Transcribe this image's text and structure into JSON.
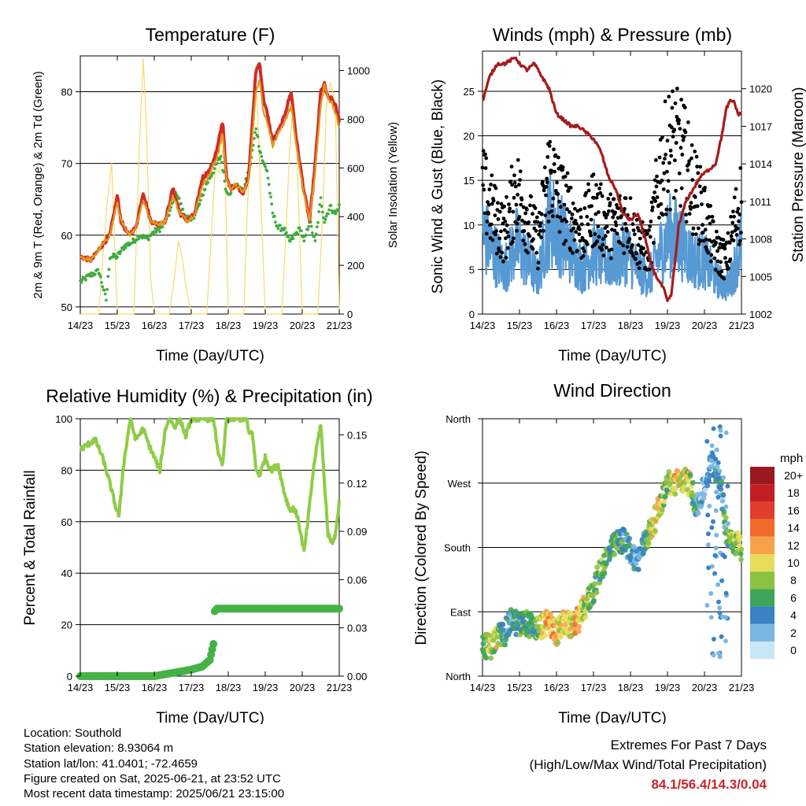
{
  "time_ticks": [
    "14/23",
    "15/23",
    "16/23",
    "17/23",
    "18/23",
    "19/23",
    "20/23",
    "21/23"
  ],
  "info": {
    "location": "Location: Southold",
    "elevation": "Station elevation: 8.93064 m",
    "latlon": "Station lat/lon: 41.0401; -72.4659",
    "created": "Figure created on Sat, 2025-06-21, at 23:52 UTC",
    "recent": "Most recent data timestamp: 2025/06/21 23:15:00"
  },
  "extremes": {
    "title": "Extremes For Past 7 Days",
    "subtitle": "(High/Low/Max Wind/Total Precipitation)",
    "values": "84.1/56.4/14.3/0.04"
  },
  "colors": {
    "temp_2m": "#e09a1e",
    "temp_9m": "#d42a24",
    "dewpoint": "#3fac3f",
    "solar": "#f5dc6c",
    "wind": "#5799d3",
    "gust": "#000000",
    "pressure": "#a51b1c",
    "rh": "#8fcc47",
    "precip": "#45b244"
  },
  "chart_data": [
    {
      "type": "line",
      "title": "Temperature (F)",
      "xlabel": "Time (Day/UTC)",
      "ylabel": "2m & 9m T (Red, Orange) & 2m Td (Green)",
      "y2label": "Solar Insolation (Yellow)",
      "x_range_days": [
        0,
        7
      ],
      "ylim": [
        49,
        85
      ],
      "yticks": [
        50,
        60,
        70,
        80
      ],
      "y2lim": [
        0,
        1060
      ],
      "y2ticks": [
        0,
        200,
        400,
        600,
        800,
        1000
      ],
      "grid": true,
      "series": [
        {
          "name": "9m T",
          "x": [
            0,
            0.3,
            0.5,
            0.8,
            1.0,
            1.1,
            1.3,
            1.5,
            1.7,
            1.9,
            2.1,
            2.3,
            2.5,
            2.7,
            2.9,
            3.1,
            3.3,
            3.5,
            3.7,
            3.85,
            3.95,
            4.05,
            4.2,
            4.4,
            4.55,
            4.75,
            4.85,
            4.95,
            5.05,
            5.2,
            5.45,
            5.7,
            5.85,
            6.05,
            6.2,
            6.35,
            6.5,
            6.6,
            6.7,
            6.8,
            6.9,
            7.0
          ],
          "values": [
            57,
            56.5,
            58,
            60,
            65.5,
            62,
            60,
            61,
            66,
            62,
            61.5,
            62,
            66.5,
            63,
            62,
            63,
            68,
            69,
            72,
            76,
            68,
            66.5,
            67,
            66,
            68,
            83,
            84,
            79,
            77,
            73,
            75.5,
            80,
            73,
            66,
            62,
            70,
            80,
            81,
            79,
            79,
            78,
            76
          ]
        },
        {
          "name": "2m T",
          "x": [
            0,
            0.3,
            0.5,
            0.8,
            1.0,
            1.1,
            1.3,
            1.5,
            1.7,
            1.9,
            2.1,
            2.3,
            2.5,
            2.7,
            2.9,
            3.1,
            3.3,
            3.5,
            3.7,
            3.85,
            3.95,
            4.05,
            4.2,
            4.4,
            4.55,
            4.75,
            4.85,
            4.95,
            5.05,
            5.2,
            5.45,
            5.7,
            5.85,
            6.05,
            6.2,
            6.35,
            6.5,
            6.6,
            6.7,
            6.8,
            6.9,
            7.0
          ],
          "values": [
            57,
            56.5,
            58,
            60,
            64.5,
            62,
            60,
            61,
            65,
            62,
            61.5,
            62,
            65.5,
            63,
            62,
            63,
            67,
            68.5,
            71,
            74,
            68,
            66.5,
            67,
            66,
            67.5,
            80,
            82,
            77,
            76,
            72.5,
            75,
            78,
            72,
            65.5,
            62,
            69,
            78,
            81,
            79,
            78.5,
            77,
            75
          ]
        },
        {
          "name": "2m Td",
          "x": [
            0,
            0.3,
            0.5,
            0.7,
            0.8,
            1.0,
            1.2,
            1.4,
            1.6,
            1.8,
            2.0,
            2.2,
            2.4,
            2.6,
            2.8,
            3.0,
            3.2,
            3.4,
            3.6,
            3.8,
            3.95,
            4.05,
            4.2,
            4.4,
            4.6,
            4.75,
            4.85,
            4.95,
            5.05,
            5.2,
            5.35,
            5.5,
            5.65,
            5.8,
            5.95,
            6.05,
            6.2,
            6.35,
            6.5,
            6.6,
            6.75,
            6.9,
            7.0
          ],
          "values": [
            53.5,
            54.5,
            55,
            51,
            57,
            57,
            58.5,
            59,
            60,
            59.5,
            60.5,
            61,
            63,
            66,
            63,
            62,
            64,
            67,
            69,
            71,
            66,
            66,
            67,
            66,
            70,
            75,
            72,
            70,
            69,
            63,
            61,
            61,
            59,
            60,
            61,
            59,
            62,
            59,
            65,
            62,
            64,
            63,
            64
          ]
        },
        {
          "name": "Solar Insolation",
          "axis": "y2",
          "x": [
            0.0,
            0.5,
            0.62,
            0.72,
            0.85,
            1.0,
            1.45,
            1.6,
            1.7,
            1.78,
            1.85,
            1.9,
            2.0,
            2.4,
            2.55,
            2.65,
            2.75,
            2.85,
            3.0,
            3.42,
            3.55,
            3.65,
            3.75,
            3.82,
            3.9,
            4.0,
            4.42,
            4.52,
            4.62,
            4.72,
            4.78,
            4.85,
            5.0,
            5.45,
            5.55,
            5.65,
            5.72,
            5.78,
            5.85,
            6.0,
            6.42,
            6.55,
            6.65,
            6.75,
            6.85,
            6.9,
            7.0
          ],
          "values": [
            0,
            0,
            250,
            450,
            620,
            0,
            0,
            700,
            1050,
            800,
            450,
            150,
            0,
            0,
            150,
            300,
            240,
            120,
            0,
            0,
            350,
            600,
            580,
            650,
            700,
            0,
            0,
            450,
            700,
            950,
            880,
            600,
            0,
            0,
            300,
            650,
            800,
            850,
            700,
            0,
            0,
            400,
            850,
            950,
            900,
            800,
            0
          ]
        }
      ]
    },
    {
      "type": "line",
      "title": "Winds (mph) & Pressure (mb)",
      "xlabel": "Time (Day/UTC)",
      "ylabel": "Sonic Wind & Gust (Blue, Black)",
      "y2label": "Station Pressure (Maroon)",
      "x_range_days": [
        0,
        7
      ],
      "ylim": [
        0,
        29.5
      ],
      "yticks": [
        0,
        5,
        10,
        15,
        20,
        25
      ],
      "y2lim": [
        1002,
        1023
      ],
      "y2ticks": [
        1002,
        1005,
        1008,
        1011,
        1014,
        1017,
        1020
      ],
      "grid": true,
      "series": [
        {
          "name": "Sonic Wind",
          "x": [
            0,
            0.3,
            0.6,
            0.9,
            1.2,
            1.5,
            1.8,
            2.1,
            2.4,
            2.7,
            3.0,
            3.3,
            3.6,
            3.9,
            4.2,
            4.5,
            4.8,
            5.1,
            5.4,
            5.7,
            6.0,
            6.3,
            6.6,
            6.8,
            7.0
          ],
          "values": [
            9,
            7,
            5,
            8,
            6,
            4,
            11,
            9,
            7,
            5,
            7,
            6,
            6,
            7,
            5,
            4,
            7,
            9,
            8,
            6,
            6,
            4,
            3,
            5,
            8
          ]
        },
        {
          "name": "Gust",
          "x": [
            0,
            0.3,
            0.6,
            0.9,
            1.2,
            1.5,
            1.8,
            2.1,
            2.4,
            2.7,
            3.0,
            3.3,
            3.6,
            3.9,
            4.2,
            4.5,
            4.8,
            5.1,
            5.4,
            5.7,
            6.0,
            6.3,
            6.6,
            6.8,
            7.0
          ],
          "values": [
            14,
            11,
            9,
            14,
            11,
            8,
            16,
            13,
            11,
            9,
            12,
            10,
            10,
            11,
            8,
            7,
            16,
            19,
            18,
            14,
            11,
            7,
            6,
            10,
            13
          ]
        },
        {
          "name": "Station Pressure",
          "axis": "y2",
          "x": [
            0,
            0.1,
            0.2,
            0.4,
            0.6,
            0.9,
            1.0,
            1.2,
            1.4,
            1.6,
            1.8,
            2.0,
            2.2,
            2.4,
            2.6,
            2.8,
            3.0,
            3.2,
            3.4,
            3.6,
            3.8,
            4.0,
            4.2,
            4.4,
            4.55,
            4.7,
            4.9,
            5.0,
            5.1,
            5.2,
            5.3,
            5.5,
            5.7,
            5.9,
            6.1,
            6.3,
            6.45,
            6.6,
            6.7,
            6.8,
            6.9,
            7.0
          ],
          "values": [
            1019,
            1020,
            1021,
            1022,
            1022,
            1022.5,
            1022,
            1021.5,
            1022,
            1021,
            1020,
            1018,
            1017.5,
            1017,
            1017,
            1016.5,
            1016,
            1015,
            1013,
            1012,
            1010,
            1009.5,
            1010,
            1008,
            1006,
            1005,
            1004,
            1003,
            1003.5,
            1006,
            1009,
            1011,
            1012,
            1013,
            1013.5,
            1014,
            1016,
            1018.5,
            1019,
            1019,
            1018,
            1018
          ]
        }
      ]
    },
    {
      "type": "line",
      "title": "Relative Humidity (%) & Precipitation (in)",
      "xlabel": "Time (Day/UTC)",
      "ylabel": "Percent & Total Rainfall",
      "x_range_days": [
        0,
        7
      ],
      "ylim": [
        0,
        100
      ],
      "yticks": [
        0,
        20,
        40,
        60,
        80,
        100
      ],
      "y2lim": [
        0,
        0.16
      ],
      "y2ticks": [
        "0.00",
        "0.03",
        "0.06",
        "0.09",
        "0.12",
        "0.15"
      ],
      "grid": true,
      "series": [
        {
          "name": "Relative Humidity",
          "x": [
            0,
            0.2,
            0.4,
            0.6,
            0.8,
            0.95,
            1.05,
            1.15,
            1.35,
            1.5,
            1.7,
            1.85,
            2.0,
            2.15,
            2.3,
            2.4,
            2.55,
            2.7,
            2.85,
            3.0,
            3.2,
            3.4,
            3.6,
            3.75,
            3.85,
            3.95,
            4.2,
            4.5,
            4.55,
            4.65,
            4.75,
            4.85,
            5.0,
            5.15,
            5.35,
            5.5,
            5.65,
            5.8,
            5.9,
            6.05,
            6.15,
            6.3,
            6.4,
            6.5,
            6.6,
            6.7,
            6.8,
            6.9,
            7.0
          ],
          "values": [
            88,
            90,
            92,
            85,
            75,
            66,
            62,
            80,
            100,
            92,
            96,
            90,
            85,
            80,
            96,
            100,
            97,
            100,
            93,
            100,
            100,
            100,
            100,
            85,
            82,
            100,
            100,
            100,
            94,
            95,
            80,
            78,
            85,
            80,
            82,
            72,
            65,
            65,
            60,
            48,
            60,
            80,
            90,
            98,
            75,
            55,
            52,
            55,
            68
          ]
        },
        {
          "name": "Total Precipitation",
          "x": [
            0,
            1.0,
            2.0,
            2.5,
            3.0,
            3.3,
            3.5,
            3.6,
            3.62,
            3.7,
            4.0,
            5.0,
            6.0,
            7.0
          ],
          "values": [
            0,
            0,
            0,
            0.002,
            0.004,
            0.006,
            0.01,
            0.02,
            0.04,
            0.042,
            0.042,
            0.042,
            0.042,
            0.042
          ]
        }
      ]
    },
    {
      "type": "scatter",
      "title": "Wind Direction",
      "xlabel": "Time (Day/UTC)",
      "ylabel": "Direction (Colored By Speed)",
      "x_range_days": [
        0,
        7
      ],
      "ylim": [
        0,
        360
      ],
      "yticks": [
        "North",
        "East",
        "South",
        "West",
        "North"
      ],
      "grid": true,
      "colorbar": {
        "title": "mph",
        "labels": [
          "20+",
          "18",
          "16",
          "14",
          "12",
          "10",
          "8",
          "6",
          "4",
          "2",
          "0"
        ],
        "colors": [
          "#99191e",
          "#c21f24",
          "#e03d2e",
          "#f06b2a",
          "#f7a14a",
          "#e8dd5a",
          "#8dc240",
          "#3fa55a",
          "#3b82c4",
          "#7ab7e3",
          "#c8e6f7"
        ]
      },
      "series": [
        {
          "name": "Direction",
          "x": [
            0,
            0.2,
            0.4,
            0.6,
            0.8,
            1.0,
            1.2,
            1.4,
            1.6,
            1.8,
            2.0,
            2.2,
            2.4,
            2.6,
            2.8,
            3.0,
            3.2,
            3.4,
            3.6,
            3.8,
            4.0,
            4.2,
            4.4,
            4.6,
            4.8,
            5.0,
            5.2,
            5.4,
            5.6,
            5.8,
            6.0,
            6.2,
            6.4,
            6.6,
            6.8,
            7.0
          ],
          "values": [
            45,
            40,
            55,
            60,
            80,
            70,
            75,
            65,
            70,
            75,
            60,
            75,
            70,
            80,
            100,
            120,
            150,
            170,
            185,
            190,
            175,
            160,
            190,
            210,
            240,
            270,
            270,
            275,
            270,
            235,
            265,
            300,
            280,
            200,
            190,
            180
          ],
          "speeds": [
            6,
            8,
            9,
            5,
            4,
            6,
            7,
            5,
            10,
            12,
            11,
            9,
            10,
            12,
            8,
            6,
            7,
            6,
            7,
            5,
            4,
            3,
            5,
            11,
            9,
            6,
            11,
            10,
            9,
            4,
            2,
            3,
            3,
            7,
            8,
            9
          ]
        }
      ]
    }
  ]
}
